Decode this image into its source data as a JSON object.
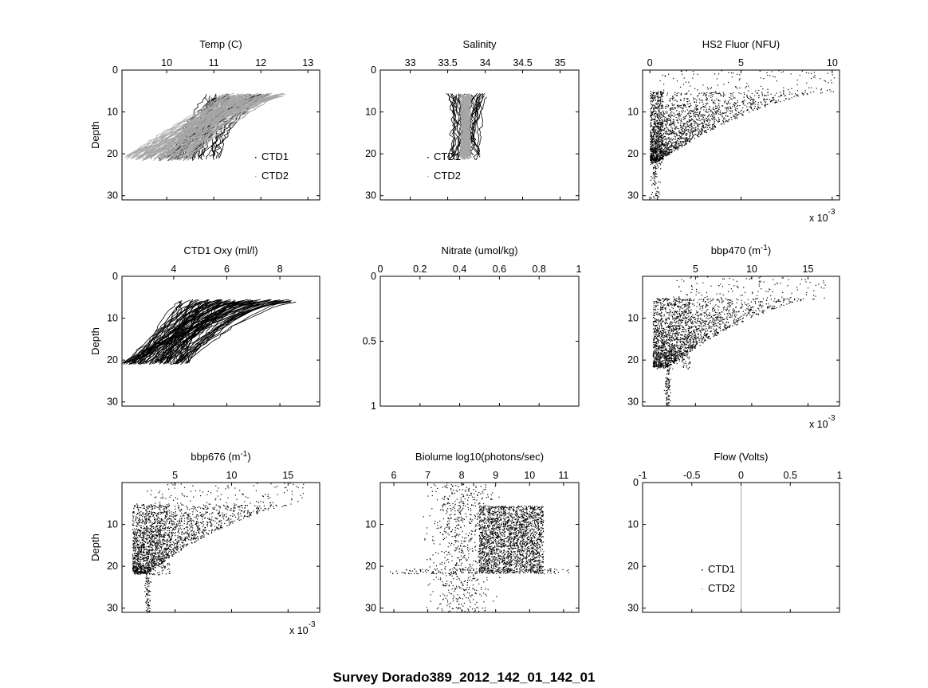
{
  "figure_title": "Survey Dorado389_2012_142_01_142_01",
  "colors": {
    "ctd1": "#000000",
    "ctd2": "#a6a6a6",
    "axis": "#000000",
    "background": "#ffffff"
  },
  "chart_data": [
    {
      "type": "line",
      "title": "Temp (C)",
      "ylabel": "Depth",
      "xlim": [
        9.05,
        13.25
      ],
      "ylim": [
        0,
        31
      ],
      "y_reversed": true,
      "xticks": [
        10,
        11,
        12,
        13
      ],
      "xticklabels": [
        "10",
        "11",
        "12",
        "13"
      ],
      "yticks": [
        0,
        10,
        20,
        30
      ],
      "yticklabels": [
        "0",
        "10",
        "20",
        "30"
      ],
      "legend": [
        "CTD1",
        "CTD2"
      ],
      "legend_position": "lower-right",
      "series": [
        {
          "name": "CTD1",
          "color": "#000000",
          "style": "line",
          "surface_range": [
            10.8,
            12.2
          ],
          "subsurface_range": [
            9.6,
            11.2
          ],
          "n_casts": 40
        },
        {
          "name": "CTD2",
          "color": "#a6a6a6",
          "style": "line",
          "surface_range": [
            11.2,
            12.5
          ],
          "subsurface_range": [
            9.1,
            10.5
          ],
          "n_casts": 90
        }
      ]
    },
    {
      "type": "line",
      "title": "Salinity",
      "ylabel": "",
      "xlim": [
        32.6,
        35.25
      ],
      "ylim": [
        0,
        31
      ],
      "y_reversed": true,
      "xticks": [
        33,
        33.5,
        34,
        34.5,
        35
      ],
      "xticklabels": [
        "33",
        "33.5",
        "34",
        "34.5",
        "35"
      ],
      "yticks": [
        0,
        10,
        20,
        30
      ],
      "yticklabels": [
        "0",
        "10",
        "20",
        "30"
      ],
      "legend": [
        "CTD1",
        "CTD2"
      ],
      "legend_position": "lower-left",
      "series": [
        {
          "name": "CTD1",
          "color": "#000000",
          "style": "line",
          "core_range": [
            33.5,
            34.0
          ],
          "n_casts": 30
        },
        {
          "name": "CTD2",
          "color": "#a6a6a6",
          "style": "line",
          "core_range": [
            33.68,
            33.8
          ],
          "n_casts": 60
        }
      ]
    },
    {
      "type": "scatter",
      "title": "HS2 Fluor (NFU)",
      "ylabel": "",
      "xlim": [
        -0.0004,
        0.0104
      ],
      "ylim": [
        0,
        31
      ],
      "y_reversed": true,
      "xticks": [
        0,
        0.005,
        0.01
      ],
      "xticklabels": [
        "0",
        "5",
        "10"
      ],
      "yticks": [
        10,
        20,
        30
      ],
      "yticklabels": [
        "10",
        "20",
        "30"
      ],
      "x_multiplier": "x 10",
      "x_multiplier_exp": "-3",
      "series": [
        {
          "name": "",
          "color": "#000000",
          "style": "dots",
          "surface_range": [
            0.0005,
            0.0101
          ],
          "deep_range": [
            0.0,
            0.0007
          ]
        }
      ]
    },
    {
      "type": "line",
      "title": "CTD1 Oxy (ml/l)",
      "ylabel": "Depth",
      "xlim": [
        2.05,
        9.5
      ],
      "ylim": [
        0,
        31
      ],
      "y_reversed": true,
      "xticks": [
        4,
        6,
        8
      ],
      "xticklabels": [
        "4",
        "6",
        "8"
      ],
      "yticks": [
        0,
        10,
        20,
        30
      ],
      "yticklabels": [
        "0",
        "10",
        "20",
        "30"
      ],
      "series": [
        {
          "name": "",
          "color": "#000000",
          "style": "line",
          "surface_range": [
            4.2,
            8.6
          ],
          "deep_range": [
            2.05,
            4.6
          ],
          "n_casts": 90
        }
      ]
    },
    {
      "type": "line",
      "title": "Nitrate (umol/kg)",
      "ylabel": "",
      "xlim": [
        0,
        1
      ],
      "ylim": [
        0,
        1
      ],
      "y_reversed": true,
      "xticks": [
        0,
        0.2,
        0.4,
        0.6,
        0.8,
        1
      ],
      "xticklabels": [
        "0",
        "0.2",
        "0.4",
        "0.6",
        "0.8",
        "1"
      ],
      "yticks": [
        0,
        0.5,
        1
      ],
      "yticklabels": [
        "0",
        "0.5",
        "1"
      ],
      "series": []
    },
    {
      "type": "scatter",
      "title": "bbp470 (m",
      "title_sup": "-1",
      "title_end": ")",
      "ylabel": "",
      "xlim": [
        0.0003,
        0.0178
      ],
      "ylim": [
        0,
        31
      ],
      "y_reversed": true,
      "xticks": [
        0.005,
        0.01,
        0.015
      ],
      "xticklabels": [
        "5",
        "10",
        "15"
      ],
      "yticks": [
        10,
        20,
        30
      ],
      "yticklabels": [
        "10",
        "20",
        "30"
      ],
      "x_multiplier": "x 10",
      "x_multiplier_exp": "-3",
      "series": [
        {
          "name": "",
          "color": "#000000",
          "style": "dots",
          "surface_range": [
            0.0025,
            0.0165
          ],
          "deep_range": [
            0.0012,
            0.0045
          ]
        }
      ]
    },
    {
      "type": "scatter",
      "title": "bbp676 (m",
      "title_sup": "-1",
      "title_end": ")",
      "ylabel": "Depth",
      "xlim": [
        0.0003,
        0.0178
      ],
      "ylim": [
        0,
        31
      ],
      "y_reversed": true,
      "xticks": [
        0.005,
        0.01,
        0.015
      ],
      "xticklabels": [
        "5",
        "10",
        "15"
      ],
      "yticks": [
        10,
        20,
        30
      ],
      "yticklabels": [
        "10",
        "20",
        "30"
      ],
      "x_multiplier": "x 10",
      "x_multiplier_exp": "-3",
      "series": [
        {
          "name": "",
          "color": "#000000",
          "style": "dots",
          "surface_range": [
            0.0025,
            0.0165
          ],
          "deep_range": [
            0.0012,
            0.0045
          ]
        }
      ]
    },
    {
      "type": "scatter",
      "title": "Biolume log10(photons/sec)",
      "ylabel": "",
      "xlim": [
        5.6,
        11.45
      ],
      "ylim": [
        0,
        31
      ],
      "y_reversed": true,
      "xticks": [
        6,
        7,
        8,
        9,
        10,
        11
      ],
      "xticklabels": [
        "6",
        "7",
        "8",
        "9",
        "10",
        "11"
      ],
      "yticks": [
        10,
        20,
        30
      ],
      "yticklabels": [
        "10",
        "20",
        "30"
      ],
      "series": [
        {
          "name": "",
          "color": "#000000",
          "style": "dots",
          "dense_range": [
            8.5,
            10.4
          ],
          "sparse_range": [
            5.8,
            11.2
          ]
        }
      ]
    },
    {
      "type": "line",
      "title": "Flow (Volts)",
      "ylabel": "",
      "xlim": [
        -1,
        1
      ],
      "ylim": [
        0,
        31
      ],
      "y_reversed": true,
      "xticks": [
        -1,
        -0.5,
        0,
        0.5,
        1
      ],
      "xticklabels": [
        "-1",
        "-0.5",
        "0",
        "0.5",
        "1"
      ],
      "yticks": [
        0,
        10,
        20,
        30
      ],
      "yticklabels": [
        "0",
        "10",
        "20",
        "30"
      ],
      "legend": [
        "CTD1",
        "CTD2"
      ],
      "legend_position": "lower-left",
      "series": [
        {
          "name": "CTD2",
          "color": "#a6a6a6",
          "style": "line",
          "x": [
            0,
            0
          ],
          "y": [
            0,
            31
          ]
        }
      ]
    }
  ]
}
